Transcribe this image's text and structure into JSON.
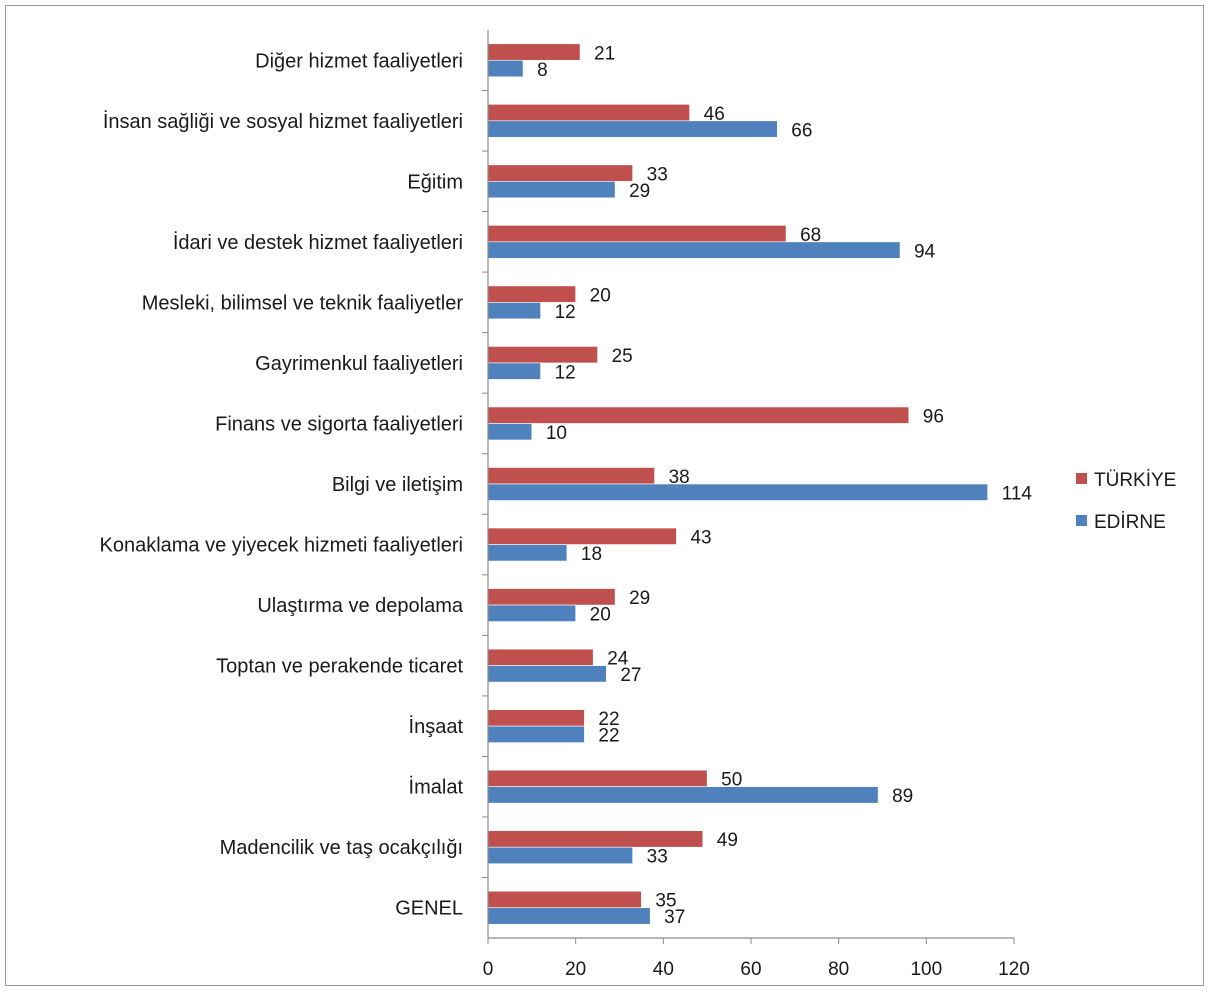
{
  "chart_data": {
    "type": "bar",
    "orientation": "horizontal",
    "categories": [
      "Diğer hizmet faaliyetleri",
      "İnsan sağliği ve sosyal hizmet faaliyetleri",
      "Eğitim",
      "İdari ve destek hizmet faaliyetleri",
      "Mesleki, bilimsel ve teknik faaliyetler",
      "Gayrimenkul faaliyetleri",
      "Finans ve sigorta faaliyetleri",
      "Bilgi ve iletişim",
      "Konaklama ve yiyecek hizmeti faaliyetleri",
      "Ulaştırma ve depolama",
      "Toptan ve perakende ticaret",
      "İnşaat",
      "İmalat",
      "Madencilik ve taş ocakçılığı",
      "GENEL"
    ],
    "series": [
      {
        "name": "TÜRKİYE",
        "color": "#c0504d",
        "values": [
          21,
          46,
          33,
          68,
          20,
          25,
          96,
          38,
          43,
          29,
          24,
          22,
          50,
          49,
          35
        ]
      },
      {
        "name": "EDİRNE",
        "color": "#4f81bd",
        "values": [
          8,
          66,
          29,
          94,
          12,
          12,
          10,
          114,
          18,
          20,
          27,
          22,
          89,
          33,
          37
        ]
      }
    ],
    "x_ticks": [
      "0",
      "20",
      "40",
      "60",
      "80",
      "100",
      "120"
    ],
    "xlim": [
      0,
      120
    ],
    "grid": false,
    "legend_position": "right",
    "title": "",
    "xlabel": "",
    "ylabel": ""
  }
}
